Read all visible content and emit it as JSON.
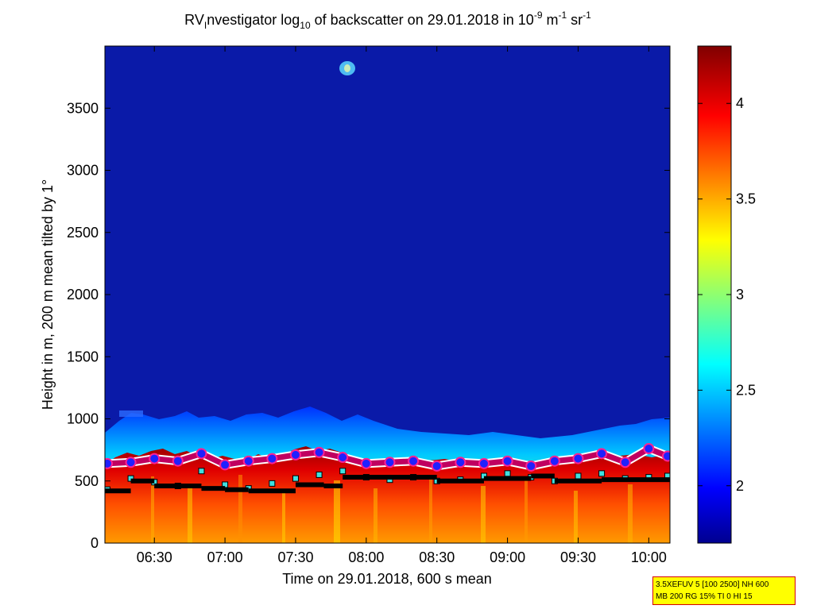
{
  "chart_data": {
    "type": "heatmap",
    "title": {
      "prefix": "RV",
      "prefix_sub": "I",
      "main": "nvestigator log",
      "main_sub": "10",
      "rest": " of backscatter on 29.01.2018 in 10",
      "exp1": "-9",
      "unit1": " m",
      "exp2": "-1",
      "unit2": " sr",
      "exp3": "-1"
    },
    "xlabel": "Time on 29.01.2018, 600 s mean",
    "ylabel": "Height in m, 200 m mean tilted by 1°",
    "x_range": [
      "06:09",
      "10:09"
    ],
    "xticks": [
      "06:30",
      "07:00",
      "07:30",
      "08:00",
      "08:30",
      "09:00",
      "09:30",
      "10:00"
    ],
    "ylim": [
      0,
      4000
    ],
    "yticks": [
      "0",
      "500",
      "1000",
      "1500",
      "2000",
      "2500",
      "3000",
      "3500"
    ],
    "colorbar": {
      "range": [
        1.7,
        4.3
      ],
      "ticks": [
        "2",
        "2.5",
        "3",
        "3.5",
        "4"
      ],
      "colormap": [
        "#00008f",
        "#0000ff",
        "#00ffff",
        "#ffff00",
        "#ff0000",
        "#800000"
      ]
    },
    "series": [
      {
        "marker": "magenta-circle-white-outline",
        "x": [
          "06:10",
          "06:20",
          "06:30",
          "06:40",
          "06:50",
          "07:00",
          "07:10",
          "07:20",
          "07:30",
          "07:40",
          "07:50",
          "08:00",
          "08:10",
          "08:20",
          "08:30",
          "08:40",
          "08:50",
          "09:00",
          "09:10",
          "09:20",
          "09:30",
          "09:40",
          "09:50",
          "10:00",
          "10:08"
        ],
        "y": [
          640,
          650,
          680,
          660,
          720,
          630,
          660,
          680,
          710,
          730,
          690,
          640,
          650,
          660,
          620,
          650,
          640,
          660,
          620,
          660,
          680,
          720,
          650,
          760,
          700
        ]
      },
      {
        "marker": "cyan-square",
        "x": [
          "06:10",
          "06:20",
          "06:30",
          "06:40",
          "06:50",
          "07:00",
          "07:10",
          "07:20",
          "07:30",
          "07:40",
          "07:50",
          "08:00",
          "08:10",
          "08:20",
          "08:30",
          "08:40",
          "08:50",
          "09:00",
          "09:10",
          "09:20",
          "09:30",
          "09:40",
          "09:50",
          "10:00",
          "10:08"
        ],
        "y": [
          430,
          520,
          490,
          460,
          580,
          470,
          440,
          480,
          520,
          550,
          580,
          530,
          510,
          530,
          500,
          510,
          540,
          560,
          530,
          500,
          540,
          560,
          520,
          530,
          540
        ]
      },
      {
        "marker": "black-step",
        "x": [
          "06:09",
          "06:20",
          "06:30",
          "06:50",
          "07:00",
          "07:10",
          "07:30",
          "07:42",
          "07:50",
          "08:30",
          "08:50",
          "09:10",
          "09:20",
          "09:40",
          "10:09"
        ],
        "y": [
          420,
          500,
          460,
          440,
          430,
          420,
          470,
          460,
          530,
          500,
          520,
          540,
          500,
          510,
          510
        ]
      }
    ]
  },
  "info_box": {
    "line1": "3.5XEFUV 5 [100 2500] NH 600",
    "line2": "MB 200 RG 15% TI 0 HI 15"
  }
}
